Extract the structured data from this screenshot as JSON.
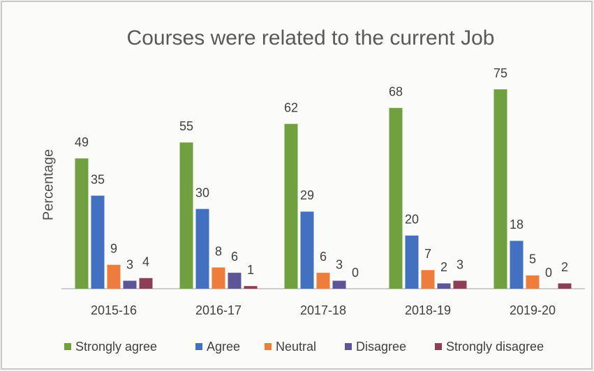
{
  "chart_data": {
    "type": "bar",
    "title": "Courses were related to the current Job",
    "y_label": "Percentage",
    "categories": [
      "2015-16",
      "2016-17",
      "2017-18",
      "2018-19",
      "2019-20"
    ],
    "series": [
      {
        "name": "Strongly agree",
        "color": "#70a03f",
        "values": [
          49,
          55,
          62,
          68,
          75
        ]
      },
      {
        "name": "Agree",
        "color": "#4470c0",
        "values": [
          35,
          30,
          29,
          20,
          18
        ]
      },
      {
        "name": "Neutral",
        "color": "#ee7d3d",
        "values": [
          9,
          8,
          6,
          7,
          5
        ]
      },
      {
        "name": "Disagree",
        "color": "#5d5596",
        "values": [
          3,
          6,
          3,
          2,
          0
        ]
      },
      {
        "name": "Strongly disagree",
        "color": "#8e3f58",
        "values": [
          4,
          1,
          0,
          3,
          2
        ]
      }
    ],
    "ylim": [
      0,
      80
    ],
    "legend": "bottom"
  }
}
